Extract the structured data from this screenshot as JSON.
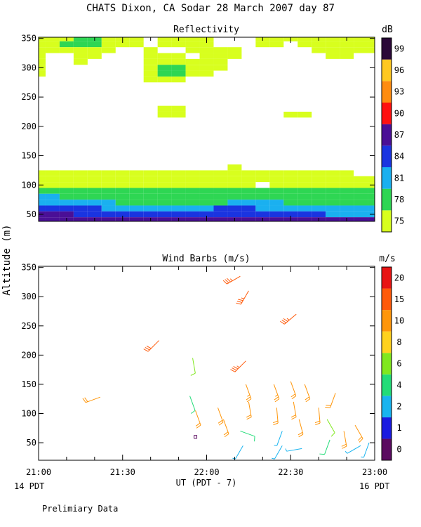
{
  "page_title": "CHATS Dixon, CA  Sodar  28 March 2007  day  87",
  "y_axis_label": "Altitude (m)",
  "x_axis_label": "UT  (PDT - 7)",
  "x_left_note": "14 PDT",
  "x_right_note": "16 PDT",
  "footer_note": "Prelimiary Data",
  "chart_data": [
    {
      "type": "heatmap",
      "title": "Reflectivity",
      "colorbar_label": "dB",
      "x_ticks": [
        "21:00",
        "21:30",
        "22:00",
        "22:30",
        "23:00"
      ],
      "y_ticks": [
        50,
        100,
        150,
        200,
        250,
        300,
        350
      ],
      "ylim": [
        38,
        352
      ],
      "xlim_minutes": [
        0,
        120
      ],
      "colorbar": {
        "labels": [
          "75",
          "78",
          "81",
          "84",
          "87",
          "90",
          "93",
          "96",
          "99"
        ],
        "colors": [
          "#d8ff1e",
          "#2ed653",
          "#1ab0f0",
          "#1a34e0",
          "#4a0f96",
          "#ff1010",
          "#ff8c10",
          "#ffc820",
          "#2a0838"
        ]
      },
      "x_minutes": [
        0,
        5,
        10,
        15,
        20,
        25,
        30,
        35,
        40,
        45,
        50,
        55,
        60,
        65,
        70,
        75,
        80,
        85,
        90,
        95,
        100,
        105,
        110,
        115,
        120
      ],
      "y_levels": [
        40,
        50,
        60,
        70,
        80,
        90,
        100,
        110,
        120,
        130,
        140,
        150,
        160,
        170,
        180,
        190,
        200,
        210,
        220,
        230,
        240,
        250,
        260,
        270,
        280,
        290,
        300,
        310,
        320,
        330,
        340,
        350
      ],
      "grid_encoding": "rows from 350 m down to 40 m, one char per 5-minute column; 0=none,1=75,2=78,3=81,4=84,5=87",
      "grid": [
        "1112211101111000111111111",
        "1122211101111000110111111",
        "1111110010011110000011111",
        "1001100011101110000001100",
        "1001000011111100000000000",
        "1000000012211100000000000",
        "1000000012211000000000000",
        "0000000011100000000000000",
        "0000000000000000000000000",
        "0000000000000000000000000",
        "0000000000000000000000000",
        "0000000000000000000000000",
        "0000000001100000000000000",
        "0000000001100000001100000",
        "0000000000000000000000000",
        "0000000000000000000000000",
        "0000000000000000000000000",
        "0000000000000000000000000",
        "0000000000000000000000000",
        "0000000000000000000000000",
        "0000000000000000000000000",
        "0000000000000000000000000",
        "0000000000000010000000000",
        "1111111111111111111111100",
        "1111111111111111111111111",
        "1111111111111111011111111",
        "2222222222222222222222222",
        "3322222222222222222222222",
        "3333332222222233332222222",
        "4444433333333444333333333",
        "5554444444444444444443333",
        "5555555555555555555555555"
      ]
    },
    {
      "type": "scatter",
      "title": "Wind Barbs (m/s)",
      "colorbar_label": "m/s",
      "x_ticks": [
        "21:00",
        "21:30",
        "22:00",
        "22:30",
        "23:00"
      ],
      "y_ticks": [
        50,
        100,
        150,
        200,
        250,
        300,
        350
      ],
      "ylim": [
        20,
        352
      ],
      "xlim_minutes": [
        0,
        120
      ],
      "colorbar": {
        "labels": [
          "0",
          "1",
          "2",
          "4",
          "6",
          "8",
          "10",
          "15",
          "20"
        ],
        "colors": [
          "#5a0a60",
          "#1a1ae0",
          "#18b4f0",
          "#22dc78",
          "#80e81e",
          "#ffd21e",
          "#ff960a",
          "#ff5a0a",
          "#e81414"
        ]
      },
      "barb_fields": [
        "minute",
        "altitude_m",
        "speed_m_s",
        "direction_deg"
      ],
      "barbs": [
        [
          22,
          128,
          10,
          250
        ],
        [
          43,
          225,
          16,
          225
        ],
        [
          55,
          195,
          6,
          170
        ],
        [
          54,
          130,
          4,
          160
        ],
        [
          56,
          105,
          10,
          160
        ],
        [
          56,
          60,
          0,
          0
        ],
        [
          64,
          110,
          10,
          160
        ],
        [
          66,
          90,
          10,
          160
        ],
        [
          72,
          70,
          4,
          110
        ],
        [
          72,
          335,
          18,
          240
        ],
        [
          75,
          310,
          18,
          210
        ],
        [
          74,
          190,
          18,
          225
        ],
        [
          74,
          150,
          12,
          160
        ],
        [
          75,
          120,
          10,
          170
        ],
        [
          73,
          45,
          2,
          210
        ],
        [
          84,
          150,
          12,
          160
        ],
        [
          85,
          110,
          10,
          175
        ],
        [
          87,
          70,
          2,
          200
        ],
        [
          87,
          45,
          2,
          210
        ],
        [
          90,
          155,
          10,
          160
        ],
        [
          91,
          120,
          10,
          170
        ],
        [
          93,
          90,
          10,
          165
        ],
        [
          94,
          40,
          2,
          260
        ],
        [
          92,
          270,
          18,
          230
        ],
        [
          95,
          150,
          10,
          160
        ],
        [
          100,
          110,
          10,
          175
        ],
        [
          103,
          90,
          6,
          150
        ],
        [
          104,
          55,
          4,
          200
        ],
        [
          106,
          135,
          10,
          200
        ],
        [
          109,
          70,
          10,
          170
        ],
        [
          113,
          80,
          10,
          150
        ],
        [
          115,
          45,
          2,
          240
        ],
        [
          118,
          50,
          2,
          200
        ]
      ]
    }
  ]
}
